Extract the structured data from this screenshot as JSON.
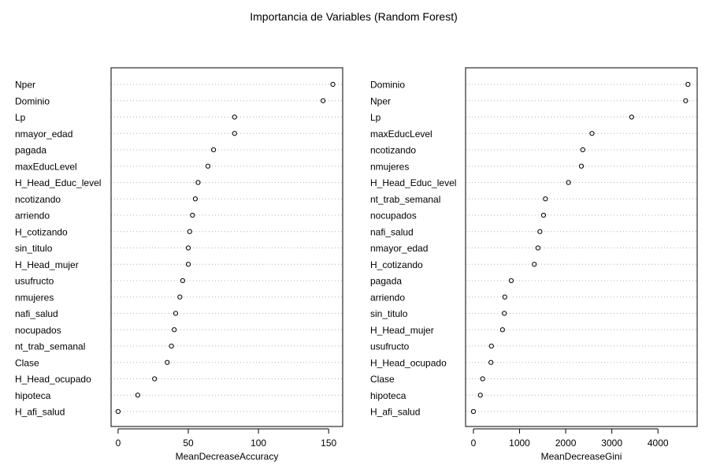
{
  "title": "Importancia de Variables (Random Forest)",
  "chart_data": [
    {
      "type": "scatter",
      "xlabel": "MeanDecreaseAccuracy",
      "xlim": [
        -5,
        160
      ],
      "xticks": [
        0,
        50,
        100,
        150
      ],
      "grid": "dotted horizontal",
      "labels": [
        "Nper",
        "Dominio",
        "Lp",
        "nmayor_edad",
        "pagada",
        "maxEducLevel",
        "H_Head_Educ_level",
        "ncotizando",
        "arriendo",
        "H_cotizando",
        "sin_titulo",
        "H_Head_mujer",
        "usufructo",
        "nmujeres",
        "nafi_salud",
        "nocupados",
        "nt_trab_semanal",
        "Clase",
        "H_Head_ocupado",
        "hipoteca",
        "H_afi_salud"
      ],
      "values": [
        153,
        146,
        83,
        83,
        68,
        64,
        57,
        55,
        53,
        51,
        50,
        50,
        46,
        44,
        41,
        40,
        38,
        35,
        26,
        14,
        0
      ]
    },
    {
      "type": "scatter",
      "xlabel": "MeanDecreaseGini",
      "xlim": [
        -170,
        4850
      ],
      "xticks": [
        0,
        1000,
        2000,
        3000,
        4000
      ],
      "grid": "dotted horizontal",
      "labels": [
        "Dominio",
        "Nper",
        "Lp",
        "maxEducLevel",
        "ncotizando",
        "nmujeres",
        "H_Head_Educ_level",
        "nt_trab_semanal",
        "nocupados",
        "nafi_salud",
        "nmayor_edad",
        "H_cotizando",
        "pagada",
        "arriendo",
        "sin_titulo",
        "H_Head_mujer",
        "usufructo",
        "H_Head_ocupado",
        "Clase",
        "hipoteca",
        "H_afi_salud"
      ],
      "values": [
        4650,
        4600,
        3430,
        2570,
        2370,
        2340,
        2060,
        1560,
        1520,
        1440,
        1400,
        1320,
        820,
        680,
        670,
        630,
        390,
        380,
        200,
        150,
        0
      ]
    }
  ]
}
